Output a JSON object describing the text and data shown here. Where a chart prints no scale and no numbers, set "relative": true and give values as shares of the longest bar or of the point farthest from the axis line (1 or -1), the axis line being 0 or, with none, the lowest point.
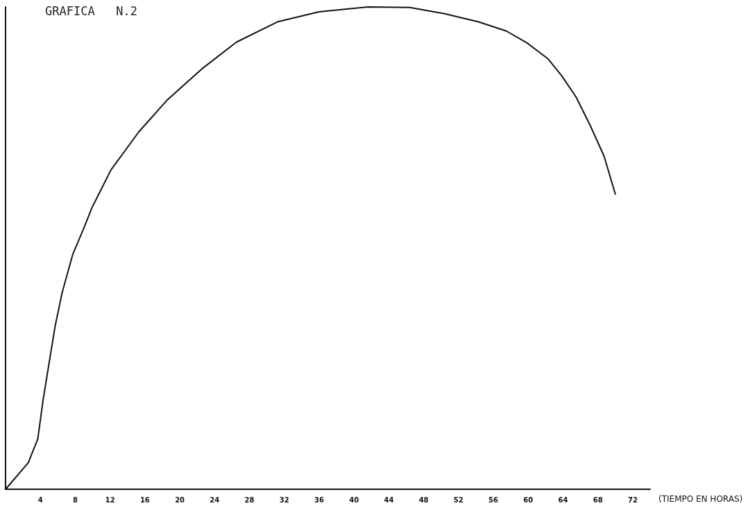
{
  "chart_data": {
    "type": "line",
    "title": "GRAFICA   N.2",
    "xlabel": "(TIEMPO EN HORAS)",
    "relative": true,
    "x": [
      0,
      2.6,
      3.7,
      4.3,
      5.1,
      5.7,
      6.5,
      7.7,
      9.0,
      9.9,
      12.1,
      15.3,
      18.5,
      22.5,
      26.5,
      31.2,
      36.0,
      41.6,
      46.4,
      50.4,
      54.3,
      57.5,
      59.9,
      62.3,
      63.9,
      65.5,
      67.1,
      68.7,
      70.0
    ],
    "series": [
      {
        "color": "#111111",
        "values": [
          0,
          0.055,
          0.104,
          0.184,
          0.273,
          0.339,
          0.408,
          0.486,
          0.542,
          0.583,
          0.662,
          0.741,
          0.806,
          0.871,
          0.927,
          0.969,
          0.99,
          1.0,
          0.999,
          0.986,
          0.969,
          0.95,
          0.925,
          0.892,
          0.856,
          0.813,
          0.755,
          0.691,
          0.612
        ]
      }
    ],
    "xlim": [
      0,
      74
    ],
    "xticks": [
      4,
      8,
      12,
      16,
      20,
      24,
      28,
      32,
      36,
      40,
      44,
      48,
      52,
      56,
      60,
      64,
      68,
      72
    ],
    "grid": false,
    "marker": "none",
    "line_style": "solid"
  }
}
